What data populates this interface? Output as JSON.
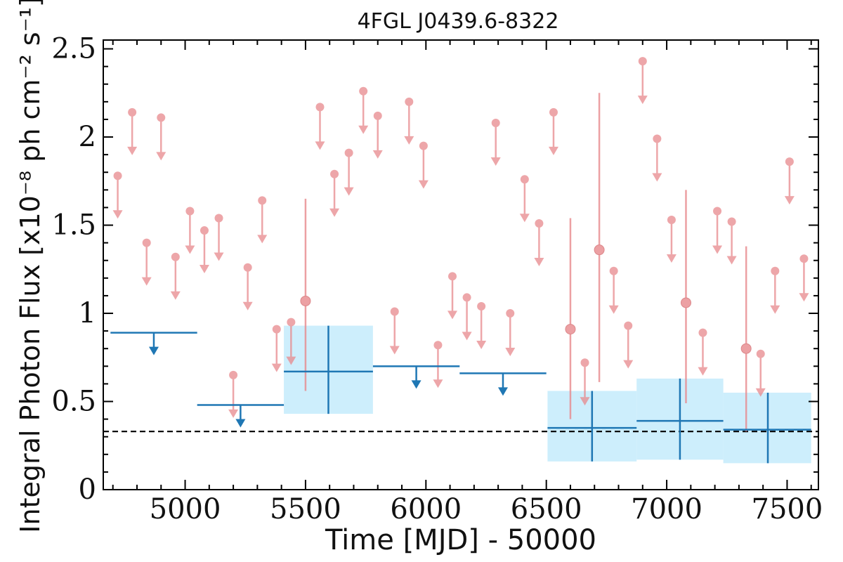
{
  "chart_data": {
    "type": "scatter",
    "title": "4FGL J0439.6-8322",
    "xlabel": "Time [MJD] - 50000",
    "ylabel": "Integral Photon Flux [x10⁻⁸ ph cm⁻² s⁻¹]",
    "xlim": [
      4660,
      7630
    ],
    "ylim": [
      0,
      2.55
    ],
    "x_ticks": [
      5000,
      5500,
      6000,
      6500,
      7000,
      7500
    ],
    "x_tick_labels": [
      "5000",
      "5500",
      "6000",
      "6500",
      "7000",
      "7500"
    ],
    "y_ticks": [
      0,
      0.5,
      1,
      1.5,
      2,
      2.5
    ],
    "y_tick_labels": [
      "0",
      "0.5",
      "1",
      "1.5",
      "2",
      "2.5"
    ],
    "reference_line": {
      "y": 0.33,
      "style": "dashed",
      "color": "#000000"
    },
    "colors": {
      "short_bins": "#e8898d",
      "long_bins": "#1f77b4",
      "error_band": "#cdeefc"
    },
    "short_bins": {
      "upper_limits": [
        {
          "x": 4720,
          "y": 1.78
        },
        {
          "x": 4780,
          "y": 2.14
        },
        {
          "x": 4840,
          "y": 1.4
        },
        {
          "x": 4900,
          "y": 2.11
        },
        {
          "x": 4960,
          "y": 1.32
        },
        {
          "x": 5020,
          "y": 1.58
        },
        {
          "x": 5080,
          "y": 1.47
        },
        {
          "x": 5140,
          "y": 1.54
        },
        {
          "x": 5200,
          "y": 0.65
        },
        {
          "x": 5260,
          "y": 1.26
        },
        {
          "x": 5320,
          "y": 1.64
        },
        {
          "x": 5380,
          "y": 0.91
        },
        {
          "x": 5440,
          "y": 0.95
        },
        {
          "x": 5560,
          "y": 2.17
        },
        {
          "x": 5620,
          "y": 1.79
        },
        {
          "x": 5680,
          "y": 1.91
        },
        {
          "x": 5740,
          "y": 2.26
        },
        {
          "x": 5800,
          "y": 2.12
        },
        {
          "x": 5870,
          "y": 1.01
        },
        {
          "x": 5930,
          "y": 2.2
        },
        {
          "x": 5990,
          "y": 1.95
        },
        {
          "x": 6050,
          "y": 0.82
        },
        {
          "x": 6110,
          "y": 1.21
        },
        {
          "x": 6170,
          "y": 1.09
        },
        {
          "x": 6230,
          "y": 1.04
        },
        {
          "x": 6290,
          "y": 2.08
        },
        {
          "x": 6350,
          "y": 1.0
        },
        {
          "x": 6410,
          "y": 1.76
        },
        {
          "x": 6470,
          "y": 1.51
        },
        {
          "x": 6530,
          "y": 2.14
        },
        {
          "x": 6660,
          "y": 0.72
        },
        {
          "x": 6780,
          "y": 1.24
        },
        {
          "x": 6840,
          "y": 0.93
        },
        {
          "x": 6900,
          "y": 2.43
        },
        {
          "x": 6960,
          "y": 1.99
        },
        {
          "x": 7020,
          "y": 1.53
        },
        {
          "x": 7150,
          "y": 0.89
        },
        {
          "x": 7210,
          "y": 1.58
        },
        {
          "x": 7270,
          "y": 1.52
        },
        {
          "x": 7390,
          "y": 0.77
        },
        {
          "x": 7450,
          "y": 1.24
        },
        {
          "x": 7510,
          "y": 1.86
        },
        {
          "x": 7570,
          "y": 1.31
        }
      ],
      "detections": [
        {
          "x": 5500,
          "y": 1.07,
          "y_err_low": 0.56,
          "y_err_high": 1.65
        },
        {
          "x": 6600,
          "y": 0.91,
          "y_err_low": 0.4,
          "y_err_high": 1.54
        },
        {
          "x": 6720,
          "y": 1.36,
          "y_err_low": 0.61,
          "y_err_high": 2.25
        },
        {
          "x": 7080,
          "y": 1.06,
          "y_err_low": 0.49,
          "y_err_high": 1.7
        },
        {
          "x": 7330,
          "y": 0.8,
          "y_err_low": 0.33,
          "y_err_high": 1.38
        }
      ]
    },
    "long_bins": {
      "upper_limits": [
        {
          "x_start": 4690,
          "x_end": 5050,
          "x_arrow": 4870,
          "y": 0.89
        },
        {
          "x_start": 5050,
          "x_end": 5410,
          "x_arrow": 5230,
          "y": 0.48
        },
        {
          "x_start": 5780,
          "x_end": 6140,
          "x_arrow": 5960,
          "y": 0.7
        },
        {
          "x_start": 6140,
          "x_end": 6500,
          "x_arrow": 6320,
          "y": 0.66
        }
      ],
      "detections": [
        {
          "x": 5595,
          "x_start": 5410,
          "x_end": 5780,
          "y": 0.67,
          "y_err_low": 0.43,
          "y_err_high": 0.93
        },
        {
          "x": 6690,
          "x_start": 6505,
          "x_end": 6875,
          "y": 0.35,
          "y_err_low": 0.16,
          "y_err_high": 0.56
        },
        {
          "x": 7055,
          "x_start": 6875,
          "x_end": 7235,
          "y": 0.39,
          "y_err_low": 0.17,
          "y_err_high": 0.63
        },
        {
          "x": 7420,
          "x_start": 7235,
          "x_end": 7600,
          "y": 0.34,
          "y_err_low": 0.15,
          "y_err_high": 0.55
        }
      ]
    }
  }
}
